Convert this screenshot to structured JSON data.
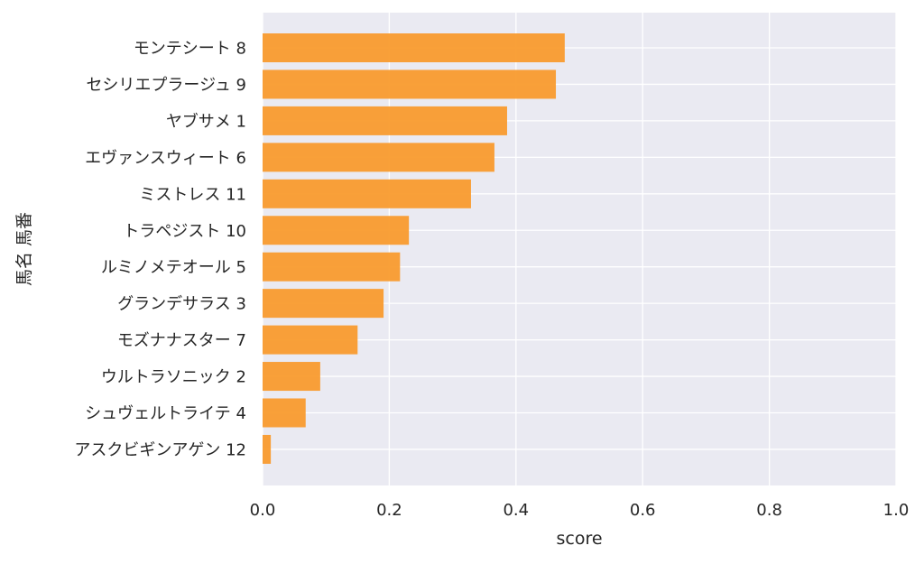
{
  "chart_data": {
    "type": "bar",
    "orientation": "horizontal",
    "title": "",
    "xlabel": "score",
    "ylabel": "馬名 馬番",
    "xlim": [
      0,
      1.0
    ],
    "xticks": [
      "0.0",
      "0.2",
      "0.4",
      "0.6",
      "0.8",
      "1.0"
    ],
    "grid": true,
    "bar_color": "#f99b2e",
    "background_color": "#eaeaf2",
    "categories": [
      "モンテシート 8",
      "セシリエプラージュ 9",
      "ヤブサメ 1",
      "エヴァンスウィート 6",
      "ミストレス 11",
      "トラペジスト 10",
      "ルミノメテオール 5",
      "グランデサラス 3",
      "モズナナスター 7",
      "ウルトラソニック 2",
      "シュヴェルトライテ 4",
      "アスクビギンアゲン 12"
    ],
    "values": [
      0.477,
      0.463,
      0.386,
      0.366,
      0.329,
      0.231,
      0.217,
      0.191,
      0.15,
      0.091,
      0.068,
      0.013
    ]
  }
}
